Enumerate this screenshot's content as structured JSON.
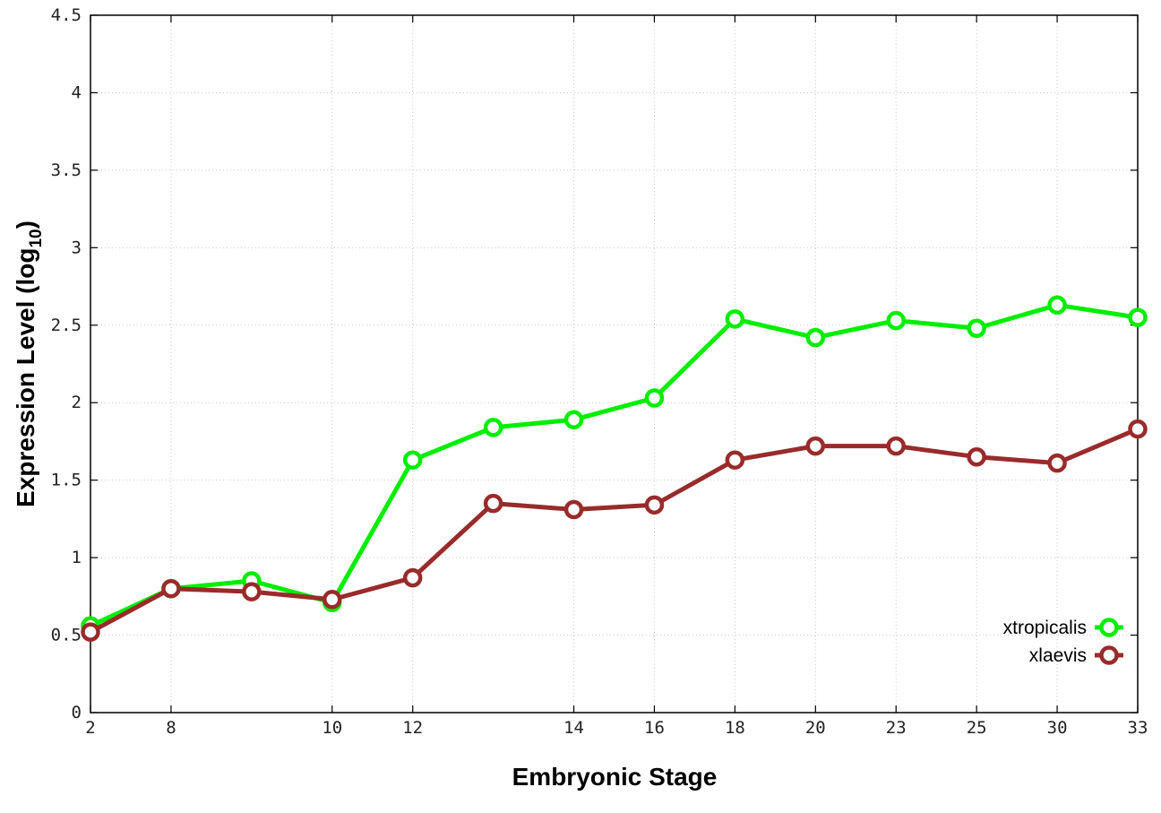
{
  "chart_data": {
    "type": "line",
    "xlabel": "Embryonic Stage",
    "ylabel_main": "Expression Level (log",
    "ylabel_sub": "10",
    "ylabel_close": ")",
    "x_ticks": [
      "2",
      "8",
      "10",
      "12",
      "14",
      "16",
      "18",
      "20",
      "23",
      "25",
      "30",
      "33"
    ],
    "y_ticks": [
      "0",
      "0.5",
      "1",
      "1.5",
      "2",
      "2.5",
      "3",
      "3.5",
      "4",
      "4.5"
    ],
    "ylim": [
      0,
      4.5
    ],
    "x_stages": [
      2,
      8,
      9,
      10,
      12,
      13,
      14,
      16,
      18,
      20,
      23,
      25,
      30,
      33
    ],
    "grid": true,
    "legend_position": "bottom-right",
    "series": [
      {
        "name": "xtropicalis",
        "color": "#00ee00",
        "x": [
          2,
          8,
          9,
          10,
          12,
          13,
          14,
          16,
          18,
          20,
          23,
          25,
          30,
          33
        ],
        "values": [
          0.56,
          0.8,
          0.85,
          0.71,
          1.63,
          1.84,
          1.89,
          2.03,
          2.54,
          2.42,
          2.53,
          2.48,
          2.63,
          2.55
        ]
      },
      {
        "name": "xlaevis",
        "color": "#992b2b",
        "x": [
          2,
          8,
          9,
          10,
          12,
          13,
          14,
          16,
          18,
          20,
          23,
          25,
          30,
          33
        ],
        "values": [
          0.52,
          0.8,
          0.78,
          0.73,
          0.87,
          1.35,
          1.31,
          1.34,
          1.63,
          1.72,
          1.72,
          1.65,
          1.61,
          1.83
        ]
      }
    ]
  }
}
